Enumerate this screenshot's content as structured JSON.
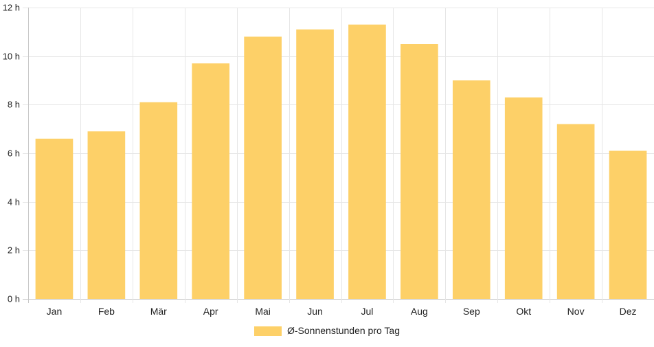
{
  "chart_data": {
    "type": "bar",
    "categories": [
      "Jan",
      "Feb",
      "Mär",
      "Apr",
      "Mai",
      "Jun",
      "Jul",
      "Aug",
      "Sep",
      "Okt",
      "Nov",
      "Dez"
    ],
    "series": [
      {
        "name": "Ø-Sonnenstunden pro Tag",
        "values": [
          6.6,
          6.9,
          8.1,
          9.7,
          10.8,
          11.1,
          11.3,
          10.5,
          9.0,
          8.3,
          7.2,
          6.1
        ]
      }
    ],
    "ylim": [
      0,
      12
    ],
    "yticks": [
      0,
      2,
      4,
      6,
      8,
      10,
      12
    ],
    "ytick_labels": [
      "0 h",
      "2 h",
      "4 h",
      "6 h",
      "8 h",
      "10 h",
      "12 h"
    ],
    "grid": true,
    "legend_position": "bottom-center",
    "colors": {
      "bar": "#fdd068",
      "grid": "#e6e6e6",
      "axis": "#c8c8c8"
    }
  }
}
